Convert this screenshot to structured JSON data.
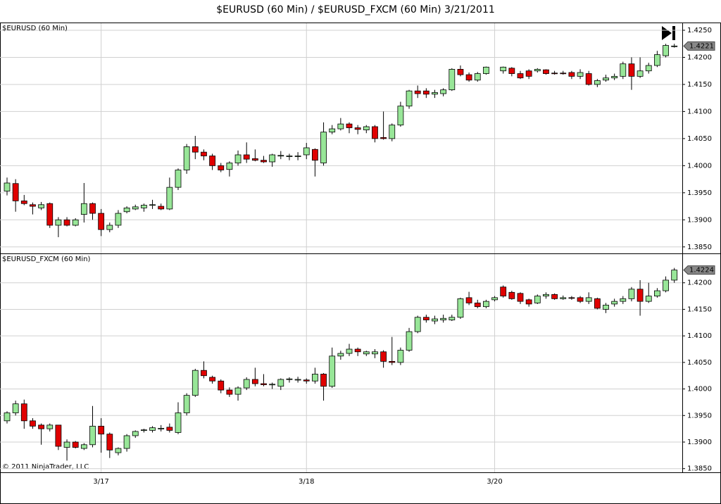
{
  "title": "$EURUSD (60 Min) / $EURUSD_FXCM (60 Min)  3/21/2011",
  "copyright": "© 2011 NinjaTrader, LLC",
  "chart_data": [
    {
      "type": "candlestick",
      "up_color": "#98e698",
      "down_color": "#e00000",
      "ylim": [
        1.3838,
        1.4263
      ],
      "yticks": [
        {
          "value": 1.385,
          "label": "1.3850"
        },
        {
          "value": 1.39,
          "label": "1.3900"
        },
        {
          "value": 1.395,
          "label": "1.3950"
        },
        {
          "value": 1.4,
          "label": "1.4000"
        },
        {
          "value": 1.405,
          "label": "1.4050"
        },
        {
          "value": 1.41,
          "label": "1.4100"
        },
        {
          "value": 1.415,
          "label": "1.4150"
        },
        {
          "value": 1.42,
          "label": "1.4200"
        },
        {
          "value": 1.425,
          "label": "1.4250"
        }
      ],
      "grid": true,
      "series": [
        {
          "name": "$EURUSD (60 Min)",
          "open": [
            1.3953,
            1.3967,
            1.3935,
            1.3928,
            1.3922,
            1.393,
            1.389,
            1.39,
            1.389,
            1.391,
            1.393,
            1.3912,
            1.3882,
            1.389,
            1.3915,
            1.392,
            1.3922,
            1.3927,
            1.3925,
            1.392,
            1.396,
            1.3992,
            1.4035,
            1.4025,
            1.4018,
            1.4,
            1.3993,
            1.4005,
            1.402,
            1.4013,
            1.401,
            1.4007,
            1.4018,
            1.4017,
            1.4017,
            1.402,
            1.403,
            1.4005,
            1.4062,
            1.4068,
            1.4077,
            1.407,
            1.4066,
            1.4072,
            1.4052,
            1.405,
            1.4075,
            1.411,
            1.4138,
            1.4138,
            1.4132,
            1.4133,
            1.414,
            1.4178,
            1.4168,
            1.4158,
            1.417,
            null,
            1.4175,
            1.418,
            1.417,
            1.4175,
            1.4175,
            1.4177,
            1.4171,
            1.4171,
            1.4172,
            1.4165,
            1.417,
            1.415,
            1.4158,
            1.4162,
            1.4165,
            1.4188,
            1.4165,
            1.4175,
            1.4185,
            1.4203,
            1.4221
          ],
          "high": [
            1.3978,
            1.3975,
            1.3946,
            1.3932,
            1.3933,
            1.3932,
            1.3905,
            1.3905,
            1.3903,
            1.3968,
            1.3932,
            1.392,
            1.3895,
            1.3918,
            1.3925,
            1.3928,
            1.393,
            1.3937,
            1.393,
            1.3978,
            1.3995,
            1.404,
            1.4055,
            1.403,
            1.4022,
            1.4005,
            1.4008,
            1.4028,
            1.4043,
            1.403,
            1.4018,
            1.4022,
            1.4027,
            1.4022,
            1.4025,
            1.4042,
            1.4032,
            1.408,
            1.4075,
            1.4088,
            1.408,
            1.4075,
            1.4075,
            1.4075,
            1.41,
            1.4078,
            1.4118,
            1.414,
            1.4148,
            1.4143,
            1.414,
            1.4143,
            1.418,
            1.4185,
            1.4172,
            1.4173,
            1.4183,
            null,
            1.4183,
            1.4182,
            1.4175,
            1.4178,
            1.418,
            1.4178,
            1.4175,
            1.4175,
            1.4175,
            1.4178,
            1.4175,
            1.416,
            1.4168,
            1.417,
            1.4192,
            1.42,
            1.42,
            1.419,
            1.4212,
            1.4225,
            1.4225
          ],
          "low": [
            1.3945,
            1.3915,
            1.3927,
            1.391,
            1.3918,
            1.3885,
            1.3868,
            1.3888,
            1.3888,
            1.3895,
            1.39,
            1.387,
            1.3877,
            1.3885,
            1.3912,
            1.3918,
            1.3915,
            1.392,
            1.3918,
            1.3918,
            1.3955,
            1.3985,
            1.4012,
            1.401,
            1.3992,
            1.3988,
            1.398,
            1.4,
            1.4005,
            1.4008,
            1.4005,
            1.3998,
            1.4012,
            1.401,
            1.401,
            1.4012,
            1.398,
            1.4,
            1.4058,
            1.4065,
            1.406,
            1.4058,
            1.406,
            1.4043,
            1.4048,
            1.4045,
            1.4072,
            1.4105,
            1.4125,
            1.4125,
            1.4125,
            1.4128,
            1.4138,
            1.4165,
            1.4155,
            1.4155,
            1.4168,
            null,
            1.417,
            1.4165,
            1.416,
            1.416,
            1.4172,
            1.4168,
            1.4168,
            1.4168,
            1.416,
            1.416,
            1.4148,
            1.4145,
            1.4155,
            1.4158,
            1.416,
            1.414,
            1.4162,
            1.417,
            1.4182,
            1.42,
            1.4218
          ],
          "close": [
            1.3968,
            1.3935,
            1.393,
            1.3925,
            1.3928,
            1.389,
            1.39,
            1.389,
            1.39,
            1.393,
            1.3912,
            1.3882,
            1.389,
            1.3912,
            1.3922,
            1.3924,
            1.3927,
            1.3928,
            1.392,
            1.396,
            1.3992,
            1.4035,
            1.4025,
            1.4018,
            1.4,
            1.3992,
            1.4005,
            1.402,
            1.4012,
            1.401,
            1.4007,
            1.402,
            1.4019,
            1.4018,
            1.4018,
            1.4033,
            1.401,
            1.4062,
            1.4068,
            1.4077,
            1.407,
            1.4067,
            1.4072,
            1.405,
            1.405,
            1.4075,
            1.411,
            1.4138,
            1.4133,
            1.4132,
            1.4135,
            1.414,
            1.4178,
            1.4168,
            1.4158,
            1.417,
            1.4182,
            null,
            1.4182,
            1.417,
            1.4162,
            1.4165,
            1.4178,
            1.417,
            1.417,
            1.417,
            1.4165,
            1.4172,
            1.415,
            1.4157,
            1.4162,
            1.4165,
            1.4188,
            1.4165,
            1.4175,
            1.4185,
            1.4205,
            1.4222,
            1.4221
          ]
        }
      ]
    },
    {
      "type": "candlestick",
      "up_color": "#98e698",
      "down_color": "#e00000",
      "ylim": [
        1.3843,
        1.4254
      ],
      "yticks": [
        {
          "value": 1.385,
          "label": "1.3850"
        },
        {
          "value": 1.39,
          "label": "1.3900"
        },
        {
          "value": 1.395,
          "label": "1.3950"
        },
        {
          "value": 1.4,
          "label": "1.4000"
        },
        {
          "value": 1.405,
          "label": "1.4050"
        },
        {
          "value": 1.41,
          "label": "1.4100"
        },
        {
          "value": 1.415,
          "label": "1.4150"
        },
        {
          "value": 1.42,
          "label": "1.4200"
        }
      ],
      "grid": true,
      "categories": [
        null,
        null,
        null,
        null,
        null,
        null,
        null,
        null,
        null,
        null,
        null,
        "3/17",
        null,
        null,
        null,
        null,
        null,
        null,
        null,
        null,
        null,
        null,
        null,
        null,
        null,
        null,
        null,
        null,
        null,
        null,
        null,
        null,
        null,
        null,
        null,
        "3/18",
        null,
        null,
        null,
        null,
        null,
        null,
        null,
        null,
        null,
        null,
        null,
        null,
        null,
        null,
        null,
        null,
        null,
        null,
        null,
        null,
        null,
        "3/20",
        null,
        null,
        null,
        null,
        null,
        null,
        null,
        null,
        null,
        null,
        null,
        null,
        null,
        null,
        null,
        null,
        null,
        null,
        null,
        null,
        null
      ],
      "series": [
        {
          "name": "$EURUSD_FXCM (60 Min)",
          "open": [
            1.394,
            1.3955,
            1.3972,
            1.394,
            1.3932,
            1.3925,
            1.3932,
            1.389,
            1.39,
            1.3888,
            1.3895,
            1.393,
            1.3915,
            1.388,
            1.3888,
            1.3912,
            1.3922,
            1.3922,
            1.3925,
            1.3928,
            1.3918,
            1.3955,
            1.3988,
            1.4035,
            1.4022,
            1.4015,
            1.3998,
            1.399,
            1.4002,
            1.4018,
            1.401,
            1.4008,
            1.4005,
            1.4018,
            1.4017,
            1.4017,
            1.4015,
            1.4028,
            1.4005,
            1.4062,
            1.4067,
            1.4075,
            1.4066,
            1.4066,
            1.407,
            1.4052,
            1.405,
            1.4073,
            1.4108,
            1.4135,
            1.4128,
            1.413,
            1.413,
            1.4135,
            1.4172,
            1.4162,
            1.4155,
            1.4168,
            1.4192,
            1.4182,
            1.418,
            1.4168,
            1.4162,
            1.4175,
            1.4178,
            1.417,
            1.4172,
            1.4172,
            1.4165,
            1.417,
            1.415,
            1.416,
            1.4165,
            1.417,
            1.4188,
            1.4165,
            1.4175,
            1.4185,
            1.4205
          ],
          "high": [
            1.3958,
            1.3978,
            1.398,
            1.3945,
            1.3935,
            1.3935,
            1.3932,
            1.3905,
            1.3902,
            1.3898,
            1.3968,
            1.3945,
            1.3918,
            1.389,
            1.3915,
            1.3922,
            1.3925,
            1.393,
            1.3932,
            1.3935,
            1.3975,
            1.3992,
            1.4038,
            1.4052,
            1.4025,
            1.4018,
            1.4003,
            1.4005,
            1.4022,
            1.404,
            1.4028,
            1.4012,
            1.402,
            1.4022,
            1.4023,
            1.402,
            1.404,
            1.403,
            1.4078,
            1.4072,
            1.4085,
            1.4078,
            1.4072,
            1.4075,
            1.4073,
            1.4098,
            1.4078,
            1.4115,
            1.4138,
            1.414,
            1.4138,
            1.414,
            1.414,
            1.4172,
            1.4183,
            1.4168,
            1.4168,
            1.4175,
            1.4195,
            1.4185,
            1.4182,
            1.417,
            1.4178,
            1.4182,
            1.418,
            1.4176,
            1.4175,
            1.4175,
            1.4182,
            1.4172,
            1.4162,
            1.417,
            1.4175,
            1.4192,
            1.4205,
            1.42,
            1.419,
            1.4212,
            1.4228
          ],
          "low": [
            1.3935,
            1.395,
            1.3925,
            1.3925,
            1.3895,
            1.392,
            1.3885,
            1.3865,
            1.3888,
            1.3885,
            1.389,
            1.388,
            1.387,
            1.3875,
            1.3882,
            1.3908,
            1.3918,
            1.3918,
            1.392,
            1.3918,
            1.3915,
            1.395,
            1.3985,
            1.402,
            1.401,
            1.3992,
            1.3985,
            1.3978,
            1.3998,
            1.4005,
            1.4005,
            1.4,
            1.3998,
            1.4012,
            1.4012,
            1.401,
            1.401,
            1.3978,
            1.4002,
            1.4055,
            1.4062,
            1.4062,
            1.4062,
            1.4058,
            1.404,
            1.4045,
            1.4045,
            1.407,
            1.4105,
            1.4125,
            1.4122,
            1.4125,
            1.4128,
            1.4132,
            1.4158,
            1.4152,
            1.4152,
            1.4165,
            1.4172,
            1.4168,
            1.416,
            1.4155,
            1.416,
            1.417,
            1.4168,
            1.4168,
            1.4168,
            1.4162,
            1.416,
            1.415,
            1.4143,
            1.4155,
            1.416,
            1.4165,
            1.4138,
            1.4162,
            1.4172,
            1.4182,
            1.42
          ],
          "close": [
            1.3955,
            1.3972,
            1.394,
            1.393,
            1.3925,
            1.3932,
            1.3892,
            1.39,
            1.389,
            1.3895,
            1.393,
            1.3915,
            1.3885,
            1.3888,
            1.3912,
            1.392,
            1.3923,
            1.3927,
            1.3926,
            1.3922,
            1.3955,
            1.3988,
            1.4035,
            1.4025,
            1.4015,
            1.3998,
            1.399,
            1.4002,
            1.4018,
            1.401,
            1.4008,
            1.4009,
            1.4018,
            1.4019,
            1.4018,
            1.4015,
            1.4028,
            1.4005,
            1.4062,
            1.4067,
            1.4075,
            1.407,
            1.407,
            1.407,
            1.4052,
            1.405,
            1.4073,
            1.4108,
            1.4135,
            1.413,
            1.4132,
            1.4133,
            1.4135,
            1.417,
            1.4162,
            1.4155,
            1.4165,
            1.4172,
            1.4175,
            1.417,
            1.4165,
            1.416,
            1.4175,
            1.4178,
            1.417,
            1.4172,
            1.4171,
            1.4165,
            1.4172,
            1.4152,
            1.4158,
            1.4165,
            1.417,
            1.4188,
            1.4165,
            1.4175,
            1.4185,
            1.4205,
            1.4224
          ]
        }
      ]
    }
  ]
}
